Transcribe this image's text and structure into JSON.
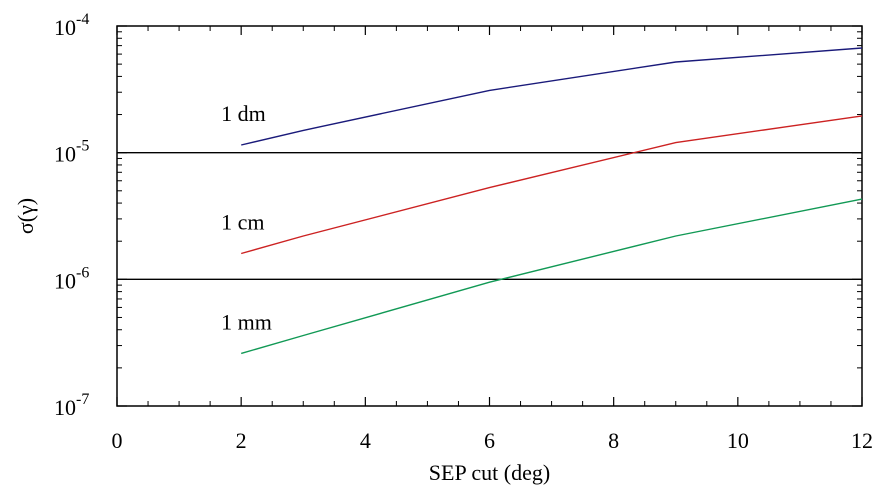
{
  "chart_data": {
    "type": "line",
    "xlabel": "SEP cut (deg)",
    "ylabel": "σ(γ)",
    "xlim": [
      0,
      12
    ],
    "ylim": [
      1e-07,
      0.0001
    ],
    "yscale": "log",
    "x_ticks": [
      {
        "value": 0,
        "label": "0"
      },
      {
        "value": 2,
        "label": "2"
      },
      {
        "value": 4,
        "label": "4"
      },
      {
        "value": 6,
        "label": "6"
      },
      {
        "value": 8,
        "label": "8"
      },
      {
        "value": 10,
        "label": "10"
      },
      {
        "value": 12,
        "label": "12"
      }
    ],
    "y_ticks": [
      {
        "value": 1e-07,
        "base": "10",
        "exp": "-7"
      },
      {
        "value": 1e-06,
        "base": "10",
        "exp": "-6"
      },
      {
        "value": 1e-05,
        "base": "10",
        "exp": "-5"
      },
      {
        "value": 0.0001,
        "base": "10",
        "exp": "-4"
      }
    ],
    "reference_lines": [
      1e-05,
      1e-06
    ],
    "series": [
      {
        "name": "1 dm",
        "color": "#1a1a7a",
        "x": [
          2,
          3,
          6,
          9,
          12
        ],
        "y": [
          1.15e-05,
          1.5e-05,
          3.1e-05,
          5.2e-05,
          6.7e-05
        ]
      },
      {
        "name": "1 cm",
        "color": "#cc2222",
        "x": [
          2,
          3,
          6,
          9,
          12
        ],
        "y": [
          1.6e-06,
          2.2e-06,
          5.3e-06,
          1.2e-05,
          1.95e-05
        ]
      },
      {
        "name": "1 mm",
        "color": "#119955",
        "x": [
          2,
          3,
          6,
          9,
          12
        ],
        "y": [
          2.6e-07,
          3.6e-07,
          9.5e-07,
          2.2e-06,
          4.3e-06
        ]
      }
    ],
    "grid": false,
    "legend": "inline labels"
  }
}
